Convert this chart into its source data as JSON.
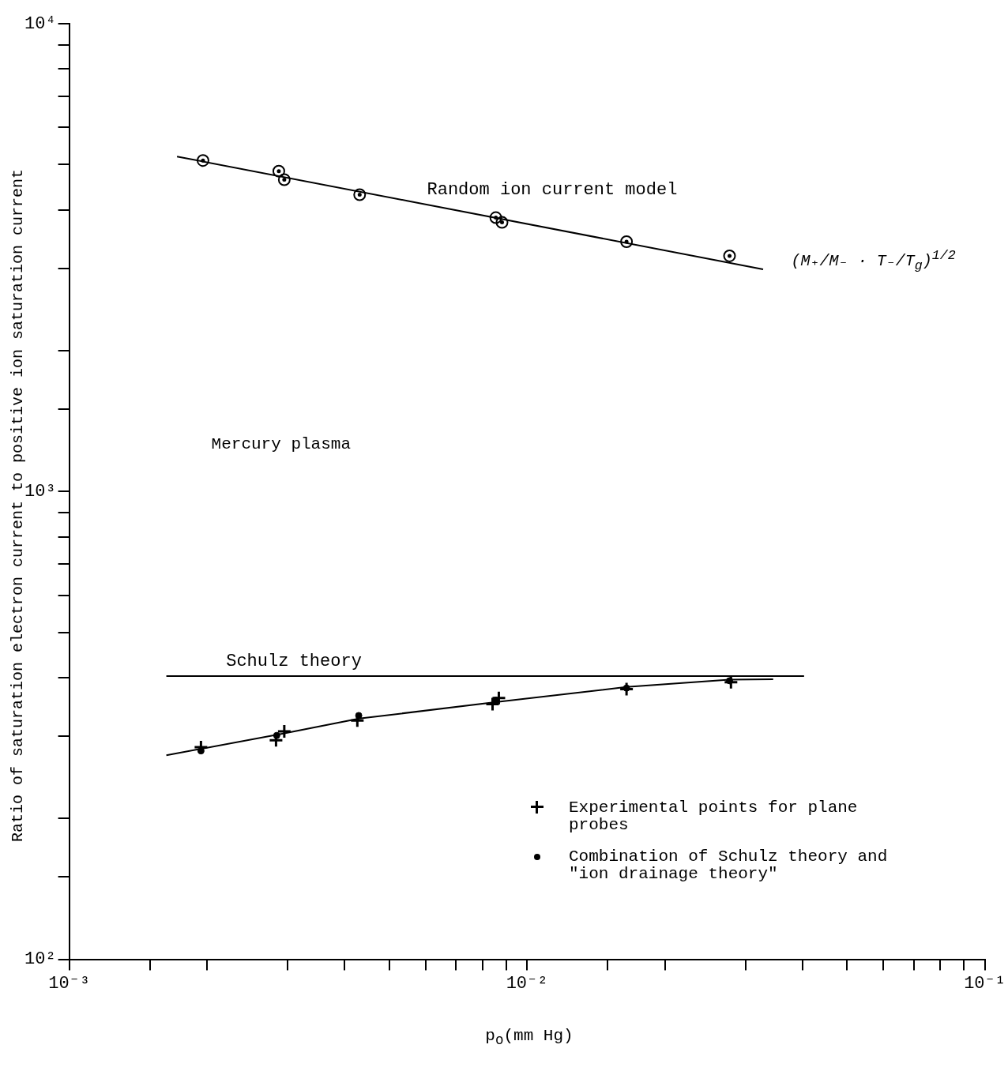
{
  "chart_data": {
    "type": "scatter",
    "xlabel": "p$_{o}$(mm Hg)",
    "ylabel": "Ratio of saturation electron current to positive ion saturation current",
    "log": "xy",
    "grid": false,
    "legend": "bottom right",
    "xlim": [
      0.001,
      0.1
    ],
    "ylim": [
      100,
      10000
    ],
    "xticks": [
      {
        "value": 0.001,
        "label": "10⁻³"
      },
      {
        "value": 0.0015,
        "label": null
      },
      {
        "value": 0.002,
        "label": null
      },
      {
        "value": 0.003,
        "label": null
      },
      {
        "value": 0.004,
        "label": null
      },
      {
        "value": 0.005,
        "label": null
      },
      {
        "value": 0.006,
        "label": null
      },
      {
        "value": 0.007,
        "label": null
      },
      {
        "value": 0.008,
        "label": null
      },
      {
        "value": 0.009,
        "label": null
      },
      {
        "value": 0.01,
        "label": "10⁻²"
      },
      {
        "value": 0.015,
        "label": null
      },
      {
        "value": 0.02,
        "label": null
      },
      {
        "value": 0.03,
        "label": null
      },
      {
        "value": 0.04,
        "label": null
      },
      {
        "value": 0.05,
        "label": null
      },
      {
        "value": 0.06,
        "label": null
      },
      {
        "value": 0.07,
        "label": null
      },
      {
        "value": 0.08,
        "label": null
      },
      {
        "value": 0.09,
        "label": null
      },
      {
        "value": 0.1,
        "label": "10⁻¹"
      }
    ],
    "yticks": [
      {
        "value": 100,
        "label": "10²"
      },
      {
        "value": 150,
        "label": null
      },
      {
        "value": 200,
        "label": null
      },
      {
        "value": 300,
        "label": null
      },
      {
        "value": 400,
        "label": null
      },
      {
        "value": 500,
        "label": null
      },
      {
        "value": 600,
        "label": null
      },
      {
        "value": 700,
        "label": null
      },
      {
        "value": 800,
        "label": null
      },
      {
        "value": 900,
        "label": null
      },
      {
        "value": 1000,
        "label": "10³"
      },
      {
        "value": 1500,
        "label": null
      },
      {
        "value": 2000,
        "label": null
      },
      {
        "value": 3000,
        "label": null
      },
      {
        "value": 4000,
        "label": null
      },
      {
        "value": 5000,
        "label": null
      },
      {
        "value": 6000,
        "label": null
      },
      {
        "value": 7000,
        "label": null
      },
      {
        "value": 8000,
        "label": null
      },
      {
        "value": 9000,
        "label": null
      },
      {
        "value": 10000,
        "label": "10⁴"
      }
    ],
    "annotations": [
      "Mercury plasma",
      "(M₊/M₋ · T₋/T$_{g}$)$^{1/2}$"
    ],
    "series": [
      {
        "marker": "circle",
        "color": "#000000",
        "x": [
          0.00196,
          0.00287,
          0.00295,
          0.00431,
          0.00855,
          0.00882,
          0.0165,
          0.0277
        ],
        "values": [
          5100,
          4840,
          4640,
          4310,
          3850,
          3760,
          3420,
          3190
        ]
      },
      {
        "type": "line",
        "name": "Random ion current model",
        "marker": "none",
        "color": "#000000",
        "x": [
          0.00172,
          0.0328
        ],
        "values": [
          5200,
          2985
        ]
      },
      {
        "type": "line",
        "name": "Schulz theory",
        "marker": "none",
        "color": "#000000",
        "x": [
          0.00163,
          0.0403
        ],
        "values": [
          403,
          403
        ]
      },
      {
        "type": "line",
        "marker": "none",
        "color": "#000000",
        "x": [
          0.00163,
          0.00295,
          0.0043,
          0.0086,
          0.0165,
          0.0277,
          0.0345
        ],
        "values": [
          273,
          304,
          327,
          355,
          382,
          396,
          397
        ]
      },
      {
        "name": "Experimental points for plane probes",
        "marker": "cross",
        "color": "#000000",
        "x": [
          0.00194,
          0.00283,
          0.00295,
          0.00426,
          0.00841,
          0.00868,
          0.0165,
          0.0279
        ],
        "values": [
          284,
          294,
          307,
          324,
          351,
          362,
          378,
          391
        ]
      },
      {
        "name": "Combination of Schulz theory and \"ion drainage theory\"",
        "marker": "circle",
        "color": "#000000",
        "x": [
          0.00194,
          0.00284,
          0.00429,
          0.00855,
          0.0165,
          0.0277
        ],
        "values": [
          279,
          301,
          332,
          358,
          380,
          394
        ]
      }
    ]
  }
}
